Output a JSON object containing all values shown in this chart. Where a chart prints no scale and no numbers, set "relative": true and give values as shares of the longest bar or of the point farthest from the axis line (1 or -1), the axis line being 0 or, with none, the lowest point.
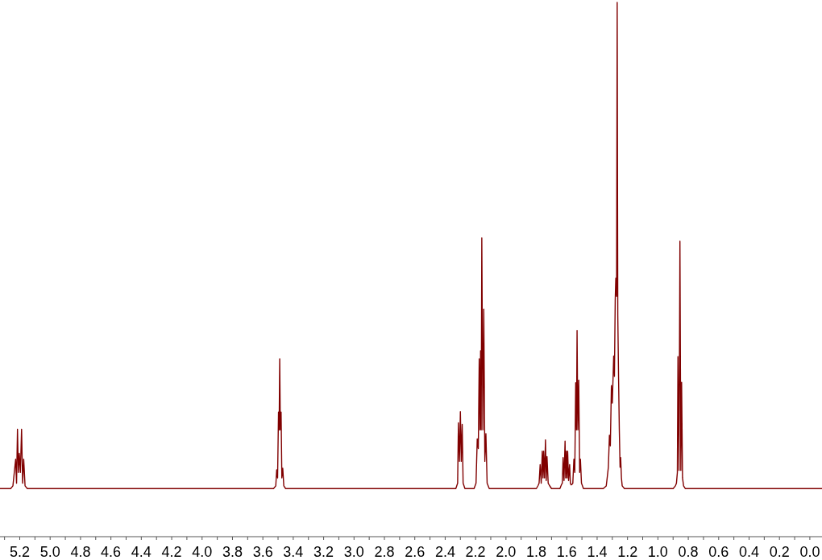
{
  "chart_data": {
    "type": "line",
    "relative": true,
    "xlim": [
      5.33,
      -0.08
    ],
    "xticks": [
      {
        "value": 5.3,
        "label": null
      },
      {
        "value": 5.2,
        "label": "5.2"
      },
      {
        "value": 5.1,
        "label": null
      },
      {
        "value": 5.0,
        "label": "5.0"
      },
      {
        "value": 4.9,
        "label": null
      },
      {
        "value": 4.8,
        "label": "4.8"
      },
      {
        "value": 4.7,
        "label": null
      },
      {
        "value": 4.6,
        "label": "4.6"
      },
      {
        "value": 4.5,
        "label": null
      },
      {
        "value": 4.4,
        "label": "4.4"
      },
      {
        "value": 4.3,
        "label": null
      },
      {
        "value": 4.2,
        "label": "4.2"
      },
      {
        "value": 4.1,
        "label": null
      },
      {
        "value": 4.0,
        "label": "4.0"
      },
      {
        "value": 3.9,
        "label": null
      },
      {
        "value": 3.8,
        "label": "3.8"
      },
      {
        "value": 3.7,
        "label": null
      },
      {
        "value": 3.6,
        "label": "3.6"
      },
      {
        "value": 3.5,
        "label": null
      },
      {
        "value": 3.4,
        "label": "3.4"
      },
      {
        "value": 3.3,
        "label": null
      },
      {
        "value": 3.2,
        "label": "3.2"
      },
      {
        "value": 3.1,
        "label": null
      },
      {
        "value": 3.0,
        "label": "3.0"
      },
      {
        "value": 2.9,
        "label": null
      },
      {
        "value": 2.8,
        "label": "2.8"
      },
      {
        "value": 2.7,
        "label": null
      },
      {
        "value": 2.6,
        "label": "2.6"
      },
      {
        "value": 2.5,
        "label": null
      },
      {
        "value": 2.4,
        "label": "2.4"
      },
      {
        "value": 2.3,
        "label": null
      },
      {
        "value": 2.2,
        "label": "2.2"
      },
      {
        "value": 2.1,
        "label": null
      },
      {
        "value": 2.0,
        "label": "2.0"
      },
      {
        "value": 1.9,
        "label": null
      },
      {
        "value": 1.8,
        "label": "1.8"
      },
      {
        "value": 1.7,
        "label": null
      },
      {
        "value": 1.6,
        "label": "1.6"
      },
      {
        "value": 1.5,
        "label": null
      },
      {
        "value": 1.4,
        "label": "1.4"
      },
      {
        "value": 1.3,
        "label": null
      },
      {
        "value": 1.2,
        "label": "1.2"
      },
      {
        "value": 1.1,
        "label": null
      },
      {
        "value": 1.0,
        "label": "1.0"
      },
      {
        "value": 0.9,
        "label": null
      },
      {
        "value": 0.8,
        "label": "0.8"
      },
      {
        "value": 0.7,
        "label": null
      },
      {
        "value": 0.6,
        "label": "0.6"
      },
      {
        "value": 0.5,
        "label": null
      },
      {
        "value": 0.4,
        "label": "0.4"
      },
      {
        "value": 0.3,
        "label": null
      },
      {
        "value": 0.2,
        "label": "0.2"
      },
      {
        "value": 0.1,
        "label": null
      },
      {
        "value": 0.0,
        "label": "0.0"
      }
    ],
    "series": [
      {
        "color": "#800000",
        "x": [
          5.33,
          5.26,
          5.245,
          5.227,
          5.221,
          5.215,
          5.209,
          5.203,
          5.196,
          5.188,
          5.181,
          5.174,
          5.165,
          5.15,
          3.53,
          3.515,
          3.509,
          3.503,
          3.497,
          3.493,
          3.489,
          3.485,
          3.48,
          3.475,
          3.469,
          3.462,
          3.45,
          2.33,
          2.318,
          2.313,
          2.306,
          2.3,
          2.294,
          2.288,
          2.282,
          2.27,
          2.21,
          2.197,
          2.189,
          2.182,
          2.176,
          2.171,
          2.167,
          2.163,
          2.159,
          2.152,
          2.146,
          2.139,
          2.132,
          2.124,
          2.11,
          1.8,
          1.788,
          1.782,
          1.775,
          1.768,
          1.761,
          1.756,
          1.752,
          1.746,
          1.74,
          1.735,
          1.73,
          1.722,
          1.714,
          1.7,
          1.645,
          1.634,
          1.629,
          1.624,
          1.618,
          1.611,
          1.607,
          1.603,
          1.598,
          1.594,
          1.588,
          1.581,
          1.576,
          1.571,
          1.565,
          1.56,
          1.553,
          1.547,
          1.541,
          1.536,
          1.532,
          1.527,
          1.521,
          1.515,
          1.51,
          1.503,
          1.49,
          1.36,
          1.34,
          1.333,
          1.326,
          1.319,
          1.313,
          1.306,
          1.3,
          1.291,
          1.286,
          1.281,
          1.277,
          1.272,
          1.268,
          1.264,
          1.259,
          1.254,
          1.249,
          1.245,
          1.24,
          1.235,
          1.22,
          0.9,
          0.885,
          0.878,
          0.872,
          0.868,
          0.861,
          0.855,
          0.849,
          0.844,
          0.838,
          0.831,
          0.82,
          -0.08
        ],
        "values": [
          0.09,
          0.09,
          0.095,
          0.145,
          0.1,
          0.201,
          0.12,
          0.156,
          0.12,
          0.201,
          0.1,
          0.145,
          0.095,
          0.09,
          0.09,
          0.095,
          0.125,
          0.11,
          0.233,
          0.2,
          0.333,
          0.2,
          0.233,
          0.11,
          0.128,
          0.095,
          0.09,
          0.09,
          0.1,
          0.213,
          0.141,
          0.234,
          0.141,
          0.21,
          0.1,
          0.09,
          0.09,
          0.1,
          0.183,
          0.165,
          0.333,
          0.2,
          0.348,
          0.2,
          0.559,
          0.2,
          0.426,
          0.141,
          0.193,
          0.1,
          0.09,
          0.09,
          0.096,
          0.1,
          0.135,
          0.1,
          0.16,
          0.11,
          0.16,
          0.11,
          0.181,
          0.105,
          0.15,
          0.1,
          0.096,
          0.09,
          0.09,
          0.098,
          0.1,
          0.148,
          0.105,
          0.179,
          0.11,
          0.16,
          0.11,
          0.16,
          0.105,
          0.135,
          0.1,
          0.097,
          0.098,
          0.1,
          0.145,
          0.12,
          0.288,
          0.2,
          0.386,
          0.2,
          0.293,
          0.12,
          0.145,
          0.1,
          0.09,
          0.09,
          0.095,
          0.112,
          0.13,
          0.19,
          0.17,
          0.283,
          0.25,
          0.338,
          0.3,
          0.442,
          0.484,
          0.45,
          1.0,
          0.415,
          0.3,
          0.2,
          0.13,
          0.148,
          0.11,
          0.095,
          0.09,
          0.09,
          0.095,
          0.1,
          0.12,
          0.337,
          0.124,
          0.553,
          0.124,
          0.289,
          0.11,
          0.095,
          0.09,
          0.09
        ]
      }
    ]
  }
}
